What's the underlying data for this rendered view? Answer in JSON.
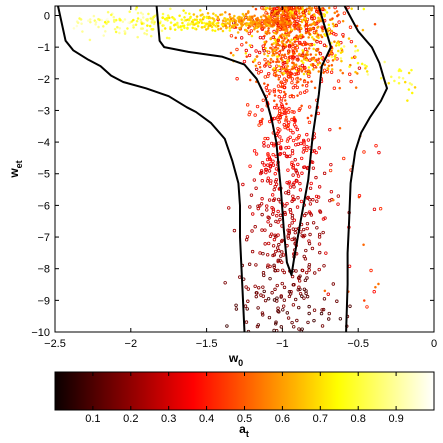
{
  "chart_data": {
    "type": "scatter",
    "xlabel": "w",
    "xlabel_sub": "0",
    "ylabel": "w",
    "ylabel_sub": "et",
    "xlim": [
      -2.5,
      0
    ],
    "ylim": [
      -10,
      0.3
    ],
    "x_ticks": [
      -2.5,
      -2,
      -1.5,
      -1,
      -0.5,
      0
    ],
    "x_tick_labels": [
      "−2.5",
      "−2",
      "−1.5",
      "−1",
      "−0.5",
      "0"
    ],
    "y_ticks": [
      0,
      -1,
      -2,
      -3,
      -4,
      -5,
      -6,
      -7,
      -8,
      -9,
      -10
    ],
    "y_tick_labels": [
      "0",
      "−1",
      "−2",
      "−3",
      "−4",
      "−5",
      "−6",
      "−7",
      "−8",
      "−9",
      "−10"
    ],
    "grid": false,
    "color_variable": "a",
    "color_variable_sub": "t",
    "colormap": "hot",
    "colorbar": {
      "range": [
        0,
        1
      ],
      "ticks": [
        0.1,
        0.2,
        0.3,
        0.4,
        0.5,
        0.6,
        0.7,
        0.8,
        0.9
      ],
      "tick_labels": [
        "0.1",
        "0.2",
        "0.3",
        "0.4",
        "0.5",
        "0.6",
        "0.7",
        "0.8",
        "0.9"
      ],
      "label": "a",
      "label_sub": "t",
      "placement": "bottom"
    },
    "contours": [
      {
        "name": "",
        "points": [
          [
            -2.48,
            0.3
          ],
          [
            -2.43,
            -0.8
          ],
          [
            -2.38,
            -1.1
          ],
          [
            -2.28,
            -1.4
          ],
          [
            -2.2,
            -1.6
          ],
          [
            -2.13,
            -1.9
          ],
          [
            -2.05,
            -2.1
          ],
          [
            -1.9,
            -2.3
          ],
          [
            -1.75,
            -2.55
          ],
          [
            -1.63,
            -2.9
          ],
          [
            -1.57,
            -3.05
          ],
          [
            -1.47,
            -3.4
          ],
          [
            -1.38,
            -3.9
          ],
          [
            -1.33,
            -4.6
          ],
          [
            -1.29,
            -5.3
          ],
          [
            -1.28,
            -6.0
          ],
          [
            -1.28,
            -7.0
          ],
          [
            -1.27,
            -8.0
          ],
          [
            -1.26,
            -9.0
          ],
          [
            -1.25,
            -10.0
          ]
        ]
      },
      {
        "name": "",
        "points": [
          [
            -1.83,
            0.3
          ],
          [
            -1.81,
            -0.8
          ],
          [
            -1.78,
            -1.0
          ],
          [
            -1.62,
            -1.15
          ],
          [
            -1.4,
            -1.3
          ],
          [
            -1.25,
            -1.55
          ],
          [
            -1.17,
            -2.0
          ],
          [
            -1.11,
            -2.6
          ],
          [
            -1.07,
            -3.3
          ],
          [
            -1.04,
            -4.0
          ],
          [
            -1.01,
            -5.5
          ],
          [
            -0.99,
            -6.8
          ],
          [
            -0.97,
            -7.8
          ],
          [
            -0.94,
            -8.2
          ],
          [
            -0.92,
            -7.6
          ],
          [
            -0.88,
            -6.5
          ],
          [
            -0.83,
            -5.2
          ],
          [
            -0.8,
            -3.8
          ],
          [
            -0.76,
            -2.5
          ],
          [
            -0.74,
            -1.6
          ],
          [
            -0.71,
            -1.3
          ],
          [
            -0.68,
            -1.0
          ],
          [
            -0.73,
            -0.2
          ],
          [
            -0.76,
            0.3
          ]
        ]
      },
      {
        "name": "",
        "points": [
          [
            -0.59,
            0.3
          ],
          [
            -0.5,
            -0.5
          ],
          [
            -0.41,
            -1.0
          ],
          [
            -0.36,
            -1.5
          ],
          [
            -0.33,
            -2.0
          ],
          [
            -0.31,
            -2.3
          ],
          [
            -0.35,
            -2.7
          ],
          [
            -0.42,
            -3.2
          ],
          [
            -0.48,
            -3.7
          ],
          [
            -0.52,
            -4.3
          ],
          [
            -0.55,
            -5.3
          ],
          [
            -0.56,
            -6.5
          ],
          [
            -0.57,
            -7.5
          ],
          [
            -0.57,
            -8.5
          ],
          [
            -0.58,
            -10.0
          ]
        ]
      }
    ]
  }
}
